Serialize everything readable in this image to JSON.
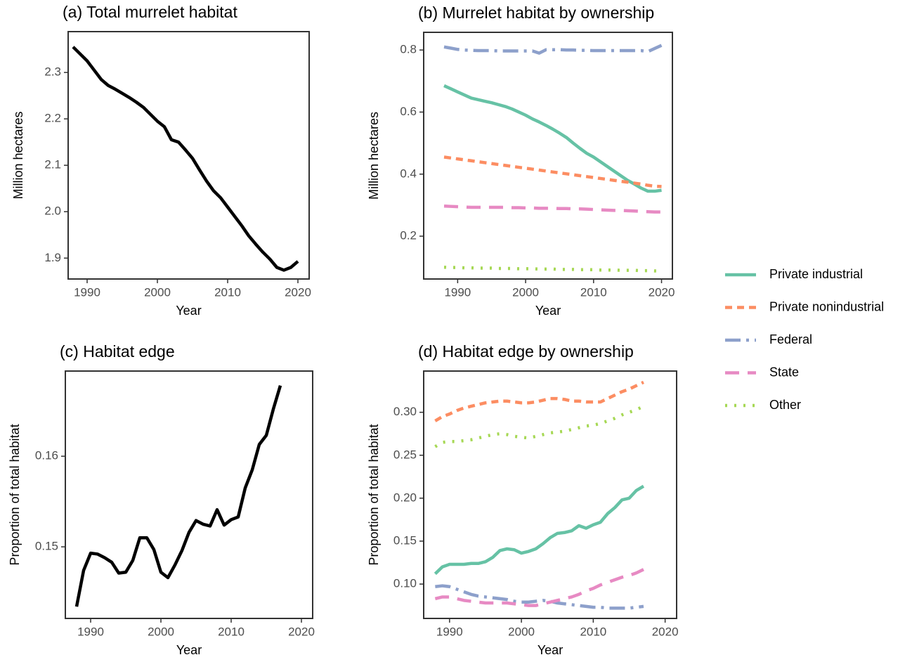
{
  "chart_data": [
    {
      "type": "line",
      "title": "(a) Total murrelet habitat",
      "x_label": "Year",
      "y_label": "Million hectares",
      "x": [
        1988,
        1989,
        1990,
        1991,
        1992,
        1993,
        1994,
        1995,
        1996,
        1997,
        1998,
        1999,
        2000,
        2001,
        2002,
        2003,
        2004,
        2005,
        2006,
        2007,
        2008,
        2009,
        2010,
        2011,
        2012,
        2013,
        2014,
        2015,
        2016,
        2017,
        2018,
        2019,
        2020
      ],
      "series": [
        {
          "color": "#000000",
          "values": [
            2.355,
            2.34,
            2.325,
            2.305,
            2.285,
            2.272,
            2.264,
            2.255,
            2.246,
            2.236,
            2.225,
            2.21,
            2.195,
            2.183,
            2.155,
            2.15,
            2.133,
            2.115,
            2.09,
            2.066,
            2.045,
            2.03,
            2.01,
            1.99,
            1.97,
            1.948,
            1.93,
            1.913,
            1.898,
            1.88,
            1.874,
            1.88,
            1.893
          ]
        }
      ],
      "xlim": [
        1987.3,
        2021.6
      ],
      "xticks": [
        1990,
        2000,
        2010,
        2020
      ],
      "ylim": [
        1.855,
        2.388
      ],
      "yticks": [
        1.9,
        {
          "value": 2,
          "label": "2.0"
        },
        2.1,
        2.2,
        2.3
      ]
    },
    {
      "type": "line",
      "title": "(b) Murrelet habitat by ownership",
      "x_label": "Year",
      "y_label": "Million hectares",
      "x": [
        1988,
        1989,
        1990,
        1991,
        1992,
        1993,
        1994,
        1995,
        1996,
        1997,
        1998,
        1999,
        2000,
        2001,
        2002,
        2003,
        2004,
        2005,
        2006,
        2007,
        2008,
        2009,
        2010,
        2011,
        2012,
        2013,
        2014,
        2015,
        2016,
        2017,
        2018,
        2019,
        2020
      ],
      "series": [
        {
          "color": "#66c2a5",
          "values": [
            0.685,
            0.675,
            0.665,
            0.655,
            0.645,
            0.64,
            0.635,
            0.63,
            0.624,
            0.618,
            0.61,
            0.6,
            0.59,
            0.578,
            0.568,
            0.557,
            0.545,
            0.532,
            0.518,
            0.5,
            0.483,
            0.467,
            0.455,
            0.44,
            0.425,
            0.41,
            0.395,
            0.38,
            0.368,
            0.355,
            0.345,
            0.345,
            0.348
          ]
        },
        {
          "color": "#fc8d62",
          "values": [
            0.455,
            0.452,
            0.449,
            0.446,
            0.443,
            0.44,
            0.437,
            0.434,
            0.431,
            0.428,
            0.425,
            0.422,
            0.419,
            0.416,
            0.413,
            0.41,
            0.407,
            0.404,
            0.401,
            0.398,
            0.395,
            0.392,
            0.389,
            0.386,
            0.383,
            0.38,
            0.377,
            0.374,
            0.371,
            0.368,
            0.364,
            0.361,
            0.36
          ]
        },
        {
          "color": "#8da0cb",
          "values": [
            0.81,
            0.806,
            0.802,
            0.8,
            0.799,
            0.798,
            0.798,
            0.798,
            0.797,
            0.797,
            0.797,
            0.797,
            0.797,
            0.797,
            0.79,
            0.801,
            0.801,
            0.801,
            0.8,
            0.8,
            0.799,
            0.799,
            0.798,
            0.798,
            0.798,
            0.798,
            0.798,
            0.798,
            0.798,
            0.798,
            0.795,
            0.805,
            0.815
          ]
        },
        {
          "color": "#e78ac3",
          "values": [
            0.297,
            0.296,
            0.295,
            0.294,
            0.293,
            0.293,
            0.293,
            0.293,
            0.293,
            0.293,
            0.292,
            0.292,
            0.291,
            0.291,
            0.29,
            0.29,
            0.29,
            0.289,
            0.289,
            0.288,
            0.288,
            0.287,
            0.286,
            0.285,
            0.284,
            0.283,
            0.283,
            0.282,
            0.281,
            0.28,
            0.279,
            0.278,
            0.278
          ]
        },
        {
          "color": "#a6d854",
          "values": [
            0.1,
            0.099,
            0.099,
            0.098,
            0.098,
            0.097,
            0.097,
            0.097,
            0.096,
            0.096,
            0.096,
            0.095,
            0.095,
            0.095,
            0.094,
            0.094,
            0.094,
            0.093,
            0.093,
            0.093,
            0.092,
            0.092,
            0.092,
            0.091,
            0.091,
            0.091,
            0.09,
            0.09,
            0.09,
            0.089,
            0.089,
            0.088,
            0.088
          ]
        }
      ],
      "xlim": [
        1985.0,
        2021.6
      ],
      "xticks": [
        1990,
        2000,
        2010,
        2020
      ],
      "ylim": [
        0.062,
        0.857
      ],
      "yticks": [
        0.2,
        0.4,
        0.6,
        0.8
      ]
    },
    {
      "type": "line",
      "title": "(c) Habitat edge",
      "x_label": "Year",
      "y_label": "Proportion of total habitat",
      "x": [
        1988,
        1989,
        1990,
        1991,
        1992,
        1993,
        1994,
        1995,
        1996,
        1997,
        1998,
        1999,
        2000,
        2001,
        2002,
        2003,
        2004,
        2005,
        2006,
        2007,
        2008,
        2009,
        2010,
        2011,
        2012,
        2013,
        2014,
        2015,
        2016,
        2017
      ],
      "series": [
        {
          "color": "#000000",
          "values": [
            0.1434,
            0.1474,
            0.1493,
            0.1492,
            0.1488,
            0.1483,
            0.1471,
            0.1472,
            0.1485,
            0.151,
            0.151,
            0.1497,
            0.1472,
            0.1466,
            0.148,
            0.1496,
            0.1516,
            0.1529,
            0.1525,
            0.1523,
            0.1541,
            0.1524,
            0.153,
            0.1533,
            0.1565,
            0.1585,
            0.1613,
            0.1623,
            0.1652,
            0.1678
          ]
        }
      ],
      "xlim": [
        1986.4,
        2021.6
      ],
      "xticks": [
        1990,
        2000,
        2010,
        2020
      ],
      "ylim": [
        0.1421,
        0.1694
      ],
      "yticks": [
        0.15,
        0.16
      ]
    },
    {
      "type": "line",
      "title": "(d) Habitat edge by ownership",
      "x_label": "Year",
      "y_label": "Proportion of total habitat",
      "x": [
        1988,
        1989,
        1990,
        1991,
        1992,
        1993,
        1994,
        1995,
        1996,
        1997,
        1998,
        1999,
        2000,
        2001,
        2002,
        2003,
        2004,
        2005,
        2006,
        2007,
        2008,
        2009,
        2010,
        2011,
        2012,
        2013,
        2014,
        2015,
        2016,
        2017
      ],
      "series": [
        {
          "color": "#66c2a5",
          "values": [
            0.112,
            0.12,
            0.123,
            0.123,
            0.123,
            0.124,
            0.124,
            0.126,
            0.131,
            0.139,
            0.141,
            0.14,
            0.136,
            0.138,
            0.141,
            0.147,
            0.154,
            0.159,
            0.16,
            0.162,
            0.168,
            0.165,
            0.169,
            0.172,
            0.182,
            0.189,
            0.198,
            0.2,
            0.209,
            0.214
          ]
        },
        {
          "color": "#fc8d62",
          "values": [
            0.29,
            0.295,
            0.298,
            0.302,
            0.305,
            0.307,
            0.309,
            0.311,
            0.312,
            0.313,
            0.313,
            0.312,
            0.311,
            0.311,
            0.312,
            0.314,
            0.316,
            0.316,
            0.315,
            0.313,
            0.313,
            0.312,
            0.312,
            0.312,
            0.316,
            0.32,
            0.324,
            0.327,
            0.331,
            0.335
          ]
        },
        {
          "color": "#8da0cb",
          "values": [
            0.097,
            0.098,
            0.097,
            0.094,
            0.091,
            0.088,
            0.086,
            0.085,
            0.084,
            0.083,
            0.082,
            0.08,
            0.079,
            0.079,
            0.08,
            0.081,
            0.08,
            0.078,
            0.077,
            0.076,
            0.075,
            0.074,
            0.073,
            0.073,
            0.072,
            0.072,
            0.072,
            0.072,
            0.073,
            0.074
          ]
        },
        {
          "color": "#e78ac3",
          "values": [
            0.083,
            0.085,
            0.085,
            0.083,
            0.081,
            0.08,
            0.079,
            0.078,
            0.078,
            0.078,
            0.078,
            0.077,
            0.076,
            0.075,
            0.075,
            0.077,
            0.079,
            0.081,
            0.083,
            0.085,
            0.088,
            0.092,
            0.095,
            0.099,
            0.102,
            0.105,
            0.108,
            0.11,
            0.113,
            0.117
          ]
        },
        {
          "color": "#a6d854",
          "values": [
            0.26,
            0.265,
            0.266,
            0.266,
            0.267,
            0.268,
            0.27,
            0.272,
            0.274,
            0.275,
            0.274,
            0.272,
            0.271,
            0.27,
            0.272,
            0.274,
            0.276,
            0.277,
            0.278,
            0.28,
            0.282,
            0.284,
            0.285,
            0.287,
            0.29,
            0.293,
            0.297,
            0.3,
            0.303,
            0.307
          ]
        }
      ],
      "xlim": [
        1986.4,
        2021.6
      ],
      "xticks": [
        1990,
        2000,
        2010,
        2020
      ],
      "ylim": [
        0.06,
        0.348
      ],
      "yticks": [
        {
          "value": 0.1,
          "label": "0.10"
        },
        0.15,
        {
          "value": 0.2,
          "label": "0.20"
        },
        0.25,
        {
          "value": 0.3,
          "label": "0.30"
        }
      ]
    }
  ],
  "legend": [
    {
      "name": "Private industrial",
      "color": "#66c2a5"
    },
    {
      "name": "Private nonindustrial",
      "color": "#fc8d62"
    },
    {
      "name": "Federal",
      "color": "#8da0cb"
    },
    {
      "name": "State",
      "color": "#e78ac3"
    },
    {
      "name": "Other",
      "color": "#a6d854"
    }
  ]
}
